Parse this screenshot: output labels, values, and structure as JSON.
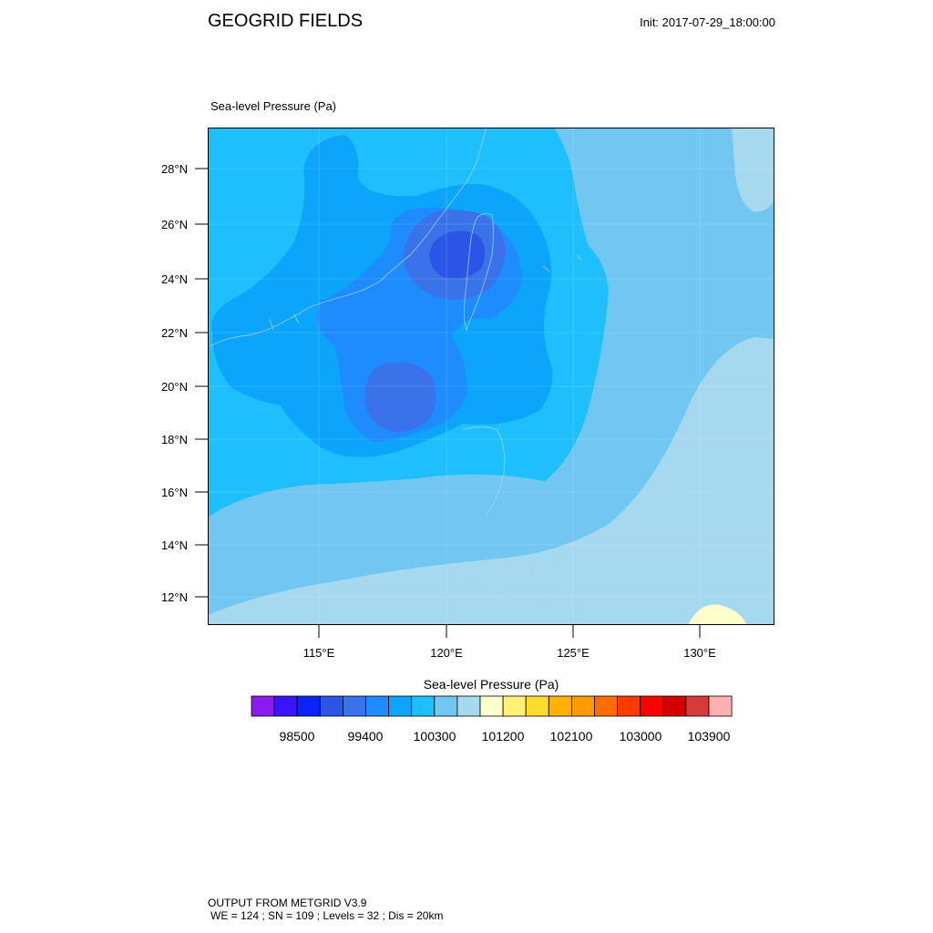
{
  "header": {
    "title": "GEOGRID FIELDS",
    "init": "Init: 2017-07-29_18:00:00"
  },
  "map": {
    "field_title": "Sea-level Pressure   (Pa)",
    "lat_labels": [
      "28°N",
      "26°N",
      "24°N",
      "22°N",
      "20°N",
      "18°N",
      "16°N",
      "14°N",
      "12°N"
    ],
    "lon_labels": [
      "115°E",
      "120°E",
      "125°E",
      "130°E"
    ],
    "colors": {
      "lvl100200": "#0da5fc",
      "lvl100500": "#1fbffd",
      "lvl100800": "#71c6f2",
      "lvl101100": "#a6d8f0",
      "lvl101200": "#ffffcc",
      "lvl100000": "#1e8cff",
      "lvl99700": "#3a72ea"
    }
  },
  "colorbar": {
    "title": "Sea-level Pressure  (Pa)",
    "labels": [
      "98500",
      "99400",
      "100300",
      "101200",
      "102100",
      "103000",
      "103900"
    ],
    "colors": [
      "#8a1aef",
      "#3c13ff",
      "#0a23ff",
      "#2b55e6",
      "#3a72ea",
      "#1e8cff",
      "#0da5fc",
      "#1fbffd",
      "#71c6f2",
      "#a6d8f0",
      "#ffffcc",
      "#fff176",
      "#ffdb2e",
      "#ffb300",
      "#ff9b00",
      "#ff6c00",
      "#ff3a00",
      "#ff0000",
      "#d40000",
      "#d83a3a",
      "#ffb0b0"
    ]
  },
  "footer": {
    "line1": "OUTPUT FROM METGRID V3.9",
    "line2": "WE = 124 ; SN = 109 ; Levels = 32 ; Dis = 20km"
  }
}
